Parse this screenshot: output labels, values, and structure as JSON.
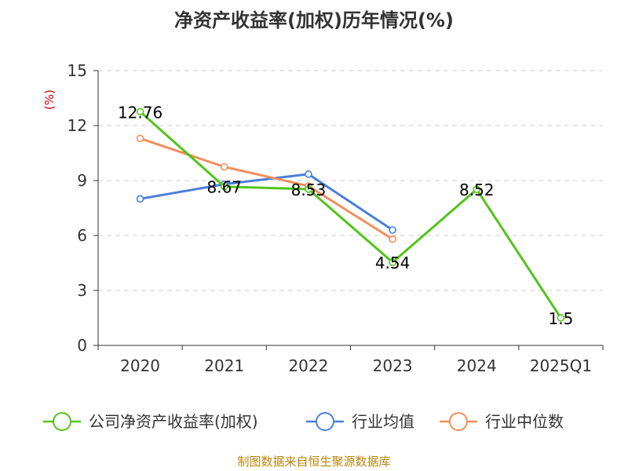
{
  "chart_data": {
    "type": "line",
    "title": "净资产收益率(加权)历年情况(%)",
    "ylabel": "(%)",
    "categories": [
      "2020",
      "2021",
      "2022",
      "2023",
      "2024",
      "2025Q1"
    ],
    "ylim": [
      0,
      15
    ],
    "yticks": [
      0,
      3,
      6,
      9,
      12,
      15
    ],
    "grid": true,
    "legend_position": "bottom",
    "series": [
      {
        "name": "公司净资产收益率(加权)",
        "color": "#52c41a",
        "values": [
          12.76,
          8.67,
          8.53,
          4.54,
          8.52,
          1.5
        ],
        "labels": [
          "12.76",
          "8.67",
          "8.53",
          "4.54",
          "8.52",
          "1.5"
        ]
      },
      {
        "name": "行业均值",
        "color": "#4a7fdb",
        "values": [
          8.0,
          8.8,
          9.35,
          6.3,
          null,
          null
        ]
      },
      {
        "name": "行业中位数",
        "color": "#f28e5c",
        "values": [
          11.3,
          9.75,
          8.7,
          5.8,
          null,
          null
        ]
      }
    ],
    "source": "制图数据来自恒生聚源数据库"
  }
}
